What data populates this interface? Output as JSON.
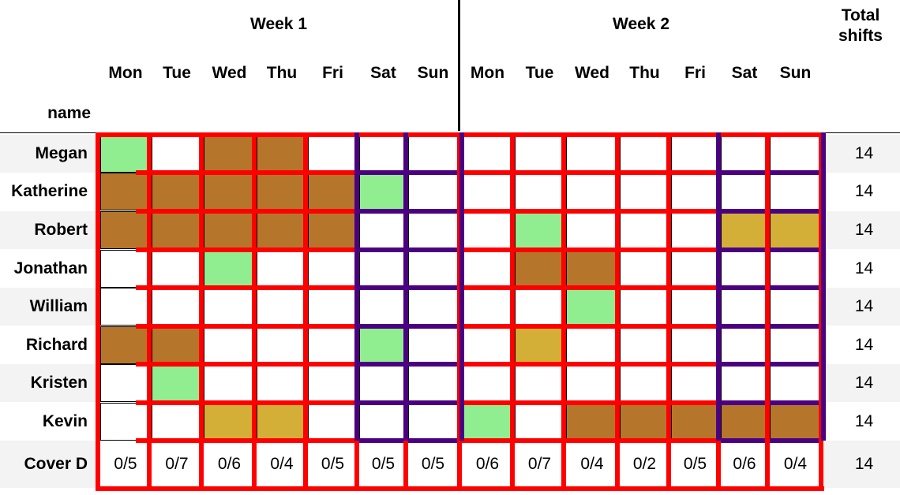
{
  "header": {
    "week_labels": [
      "Week 1",
      "Week 2"
    ],
    "days": [
      "Mon",
      "Tue",
      "Wed",
      "Thu",
      "Fri",
      "Sat",
      "Sun",
      "Mon",
      "Tue",
      "Wed",
      "Thu",
      "Fri",
      "Sat",
      "Sun"
    ],
    "total_label": "Total shifts",
    "name_label": "name"
  },
  "legend_colors": {
    "green": "#90ee90",
    "brown": "#b5762c",
    "gold": "#d4af37",
    "white": "#ffffff",
    "weekday_border": "#ff0000",
    "weekend_border": "#4b0082",
    "stripe": "#f3f3f3"
  },
  "rows": [
    {
      "name": "Megan",
      "cells": [
        "green",
        "white",
        "brown",
        "brown",
        "white",
        "white",
        "white",
        "white",
        "white",
        "white",
        "white",
        "white",
        "white",
        "white"
      ],
      "total": "14"
    },
    {
      "name": "Katherine",
      "cells": [
        "brown",
        "brown",
        "brown",
        "brown",
        "brown",
        "green",
        "white",
        "white",
        "white",
        "white",
        "white",
        "white",
        "white",
        "white"
      ],
      "total": "14"
    },
    {
      "name": "Robert",
      "cells": [
        "brown",
        "brown",
        "brown",
        "brown",
        "brown",
        "white",
        "white",
        "white",
        "green",
        "white",
        "white",
        "white",
        "gold",
        "gold"
      ],
      "total": "14"
    },
    {
      "name": "Jonathan",
      "cells": [
        "white",
        "white",
        "green",
        "white",
        "white",
        "white",
        "white",
        "white",
        "brown",
        "brown",
        "white",
        "white",
        "white",
        "white"
      ],
      "total": "14"
    },
    {
      "name": "William",
      "cells": [
        "white",
        "white",
        "white",
        "white",
        "white",
        "white",
        "white",
        "white",
        "white",
        "green",
        "white",
        "white",
        "white",
        "white"
      ],
      "total": "14"
    },
    {
      "name": "Richard",
      "cells": [
        "brown",
        "brown",
        "white",
        "white",
        "white",
        "green",
        "white",
        "white",
        "gold",
        "white",
        "white",
        "white",
        "white",
        "white"
      ],
      "total": "14"
    },
    {
      "name": "Kristen",
      "cells": [
        "white",
        "green",
        "white",
        "white",
        "white",
        "white",
        "white",
        "white",
        "white",
        "white",
        "white",
        "white",
        "white",
        "white"
      ],
      "total": "14"
    },
    {
      "name": "Kevin",
      "cells": [
        "white",
        "white",
        "gold",
        "gold",
        "white",
        "white",
        "white",
        "green",
        "white",
        "brown",
        "brown",
        "brown",
        "brown",
        "brown"
      ],
      "total": "14"
    }
  ],
  "cover": {
    "name": "Cover D",
    "values": [
      "0/5",
      "0/7",
      "0/6",
      "0/4",
      "0/5",
      "0/5",
      "0/5",
      "0/6",
      "0/7",
      "0/4",
      "0/2",
      "0/5",
      "0/6",
      "0/4"
    ],
    "total": "14"
  }
}
